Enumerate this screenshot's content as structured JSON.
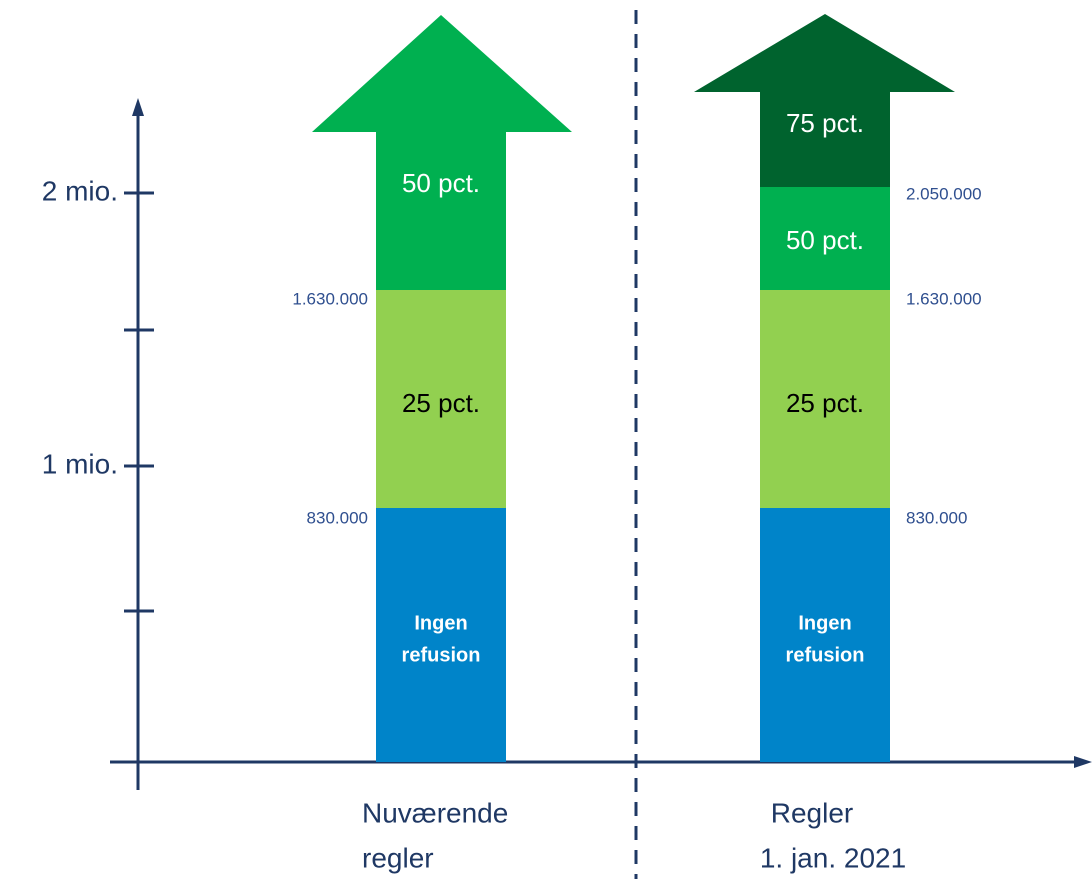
{
  "axis": {
    "ticks": [
      "2 mio.",
      "1 mio."
    ]
  },
  "columns": [
    {
      "label": [
        "Nuværende",
        "regler"
      ],
      "segments": [
        "50 pct.",
        "25 pct.",
        [
          "Ingen",
          "refusion"
        ]
      ],
      "thresholds": [
        "1.630.000",
        "830.000"
      ]
    },
    {
      "label": [
        "Regler",
        "1. jan. 2021"
      ],
      "segments": [
        "75 pct.",
        "50 pct.",
        "25 pct.",
        [
          "Ingen",
          "refusion"
        ]
      ],
      "thresholds": [
        "2.050.000",
        "1.630.000",
        "830.000"
      ]
    }
  ]
}
